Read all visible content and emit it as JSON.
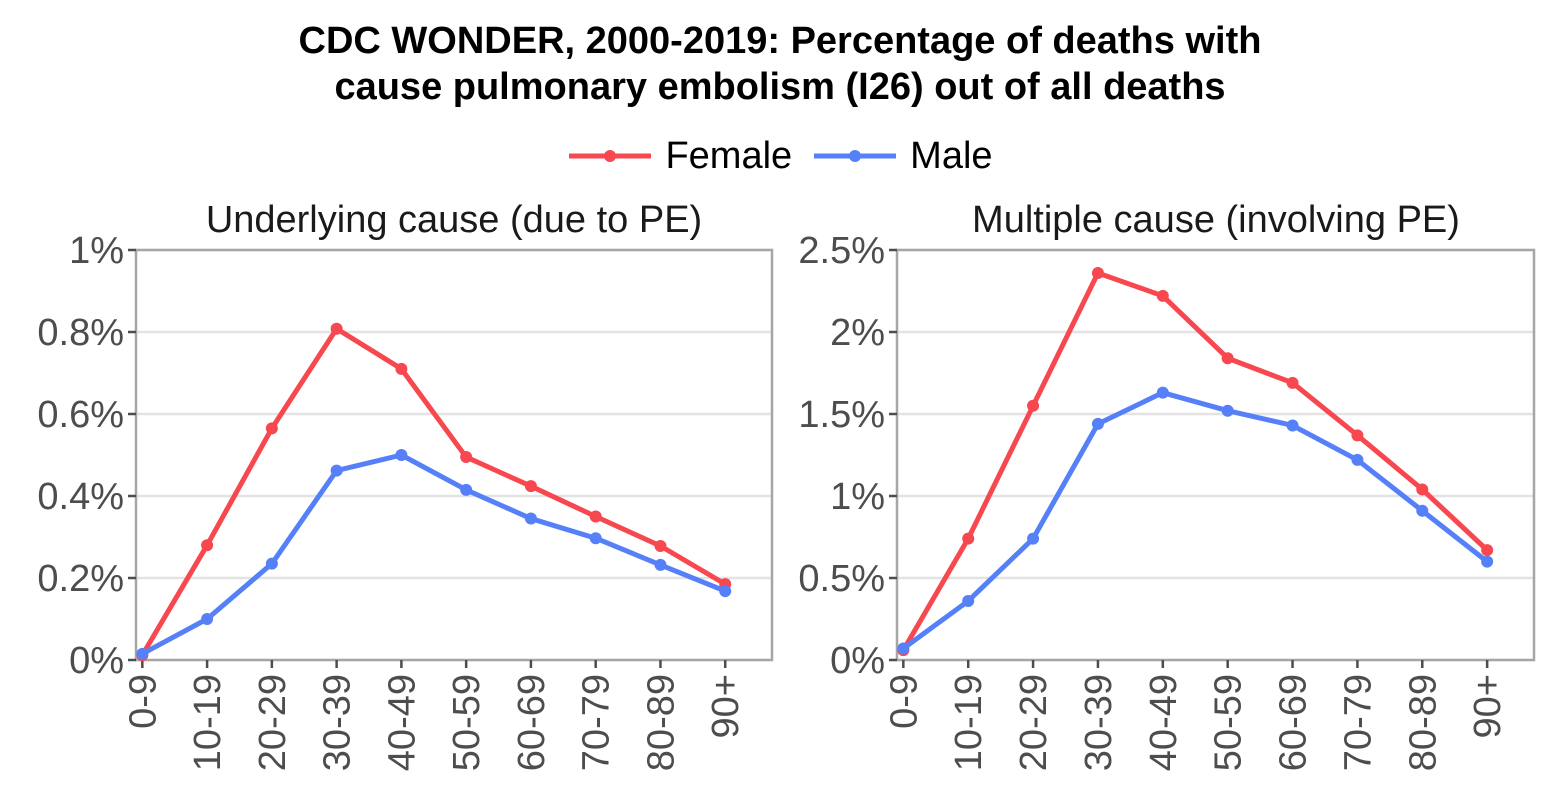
{
  "title_line1": "CDC WONDER, 2000-2019: Percentage of deaths with",
  "title_line2": "cause pulmonary embolism (I26) out of all deaths",
  "legend": [
    {
      "label": "Female",
      "color": "#f8484f"
    },
    {
      "label": "Male",
      "color": "#5580f8"
    }
  ],
  "chart_data": [
    {
      "type": "line",
      "title": "Underlying cause (due to PE)",
      "categories": [
        "0-9",
        "10-19",
        "20-29",
        "30-39",
        "40-49",
        "50-59",
        "60-69",
        "70-79",
        "80-89",
        "90+"
      ],
      "ylim": [
        0,
        1
      ],
      "yticks": [
        0,
        0.2,
        0.4,
        0.6,
        0.8,
        1
      ],
      "ytick_labels": [
        "0%",
        "0.2%",
        "0.4%",
        "0.6%",
        "0.8%",
        "1%"
      ],
      "grid": true,
      "series": [
        {
          "name": "Female",
          "color": "#f8484f",
          "values": [
            0.012,
            0.28,
            0.565,
            0.808,
            0.71,
            0.495,
            0.424,
            0.35,
            0.278,
            0.185
          ]
        },
        {
          "name": "Male",
          "color": "#5580f8",
          "values": [
            0.015,
            0.1,
            0.235,
            0.462,
            0.5,
            0.415,
            0.345,
            0.297,
            0.232,
            0.168
          ]
        }
      ]
    },
    {
      "type": "line",
      "title": "Multiple cause (involving PE)",
      "categories": [
        "0-9",
        "10-19",
        "20-29",
        "30-39",
        "40-49",
        "50-59",
        "60-69",
        "70-79",
        "80-89",
        "90+"
      ],
      "ylim": [
        0,
        2.5
      ],
      "yticks": [
        0,
        0.5,
        1,
        1.5,
        2,
        2.5
      ],
      "ytick_labels": [
        "0%",
        "0.5%",
        "1%",
        "1.5%",
        "2%",
        "2.5%"
      ],
      "grid": true,
      "series": [
        {
          "name": "Female",
          "color": "#f8484f",
          "values": [
            0.06,
            0.74,
            1.55,
            2.36,
            2.22,
            1.84,
            1.69,
            1.37,
            1.04,
            0.67
          ]
        },
        {
          "name": "Male",
          "color": "#5580f8",
          "values": [
            0.07,
            0.36,
            0.74,
            1.44,
            1.63,
            1.52,
            1.43,
            1.22,
            0.91,
            0.6
          ]
        }
      ]
    }
  ]
}
